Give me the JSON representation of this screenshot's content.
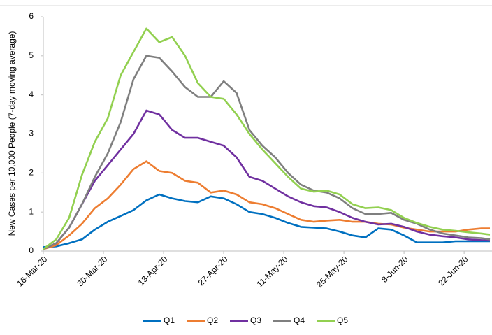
{
  "chart_data": {
    "type": "line",
    "y_label": "New Cases per 10,000 People (7-day moving average)",
    "x": [
      "16-Mar-20",
      "19-Mar-20",
      "22-Mar-20",
      "25-Mar-20",
      "28-Mar-20",
      "31-Mar-20",
      "3-Apr-20",
      "6-Apr-20",
      "9-Apr-20",
      "12-Apr-20",
      "15-Apr-20",
      "18-Apr-20",
      "21-Apr-20",
      "24-Apr-20",
      "27-Apr-20",
      "30-Apr-20",
      "3-May-20",
      "6-May-20",
      "9-May-20",
      "12-May-20",
      "15-May-20",
      "18-May-20",
      "21-May-20",
      "24-May-20",
      "27-May-20",
      "30-May-20",
      "2-Jun-20",
      "5-Jun-20",
      "8-Jun-20",
      "11-Jun-20",
      "14-Jun-20",
      "17-Jun-20",
      "20-Jun-20",
      "23-Jun-20",
      "26-Jun-20",
      "28-Jun-20"
    ],
    "xlim": [
      "16-Mar-20",
      "28-Jun-20"
    ],
    "xticks": [
      "16-Mar-20",
      "30-Mar-20",
      "13-Apr-20",
      "27-Apr-20",
      "11-May-20",
      "25-May-20",
      "8-Jun-20",
      "22-Jun-20"
    ],
    "ylim": [
      0,
      6
    ],
    "yticks": [
      0,
      1,
      2,
      3,
      4,
      5,
      6
    ],
    "grid": false,
    "legend": "bottom",
    "series": [
      {
        "name": "Q1",
        "color": "#0070c0",
        "values": [
          0.1,
          0.12,
          0.2,
          0.3,
          0.55,
          0.75,
          0.9,
          1.05,
          1.3,
          1.45,
          1.35,
          1.28,
          1.25,
          1.4,
          1.35,
          1.2,
          1.0,
          0.95,
          0.85,
          0.72,
          0.62,
          0.6,
          0.58,
          0.5,
          0.4,
          0.35,
          0.58,
          0.55,
          0.4,
          0.22,
          0.22,
          0.22,
          0.25,
          0.25,
          0.25,
          0.25
        ]
      },
      {
        "name": "Q2",
        "color": "#ed7d31",
        "values": [
          0.05,
          0.15,
          0.4,
          0.7,
          1.1,
          1.35,
          1.7,
          2.1,
          2.3,
          2.05,
          2.0,
          1.8,
          1.75,
          1.5,
          1.55,
          1.45,
          1.25,
          1.2,
          1.1,
          0.95,
          0.8,
          0.75,
          0.78,
          0.8,
          0.75,
          0.75,
          0.7,
          0.68,
          0.6,
          0.55,
          0.5,
          0.5,
          0.5,
          0.55,
          0.58,
          0.58
        ]
      },
      {
        "name": "Q3",
        "color": "#7030a0",
        "values": [
          0.05,
          0.2,
          0.6,
          1.2,
          1.8,
          2.2,
          2.6,
          3.0,
          3.6,
          3.5,
          3.1,
          2.9,
          2.9,
          2.8,
          2.7,
          2.4,
          1.9,
          1.8,
          1.6,
          1.4,
          1.25,
          1.15,
          1.12,
          1.0,
          0.85,
          0.75,
          0.68,
          0.7,
          0.62,
          0.5,
          0.42,
          0.38,
          0.35,
          0.3,
          0.28,
          0.27
        ]
      },
      {
        "name": "Q4",
        "color": "#7f7f7f",
        "values": [
          0.05,
          0.2,
          0.6,
          1.2,
          1.9,
          2.5,
          3.3,
          4.4,
          5.0,
          4.95,
          4.6,
          4.2,
          3.95,
          3.95,
          4.35,
          4.05,
          3.1,
          2.7,
          2.4,
          2.0,
          1.7,
          1.55,
          1.5,
          1.35,
          1.1,
          0.95,
          0.95,
          0.98,
          0.8,
          0.7,
          0.55,
          0.45,
          0.4,
          0.35,
          0.33,
          0.3
        ]
      },
      {
        "name": "Q5",
        "color": "#92d050",
        "values": [
          0.05,
          0.3,
          0.85,
          1.95,
          2.8,
          3.4,
          4.5,
          5.1,
          5.7,
          5.35,
          5.48,
          5.0,
          4.3,
          3.95,
          3.9,
          3.5,
          3.0,
          2.6,
          2.25,
          1.9,
          1.6,
          1.52,
          1.55,
          1.45,
          1.2,
          1.1,
          1.12,
          1.05,
          0.85,
          0.72,
          0.62,
          0.55,
          0.52,
          0.48,
          0.45,
          0.42
        ]
      }
    ]
  }
}
